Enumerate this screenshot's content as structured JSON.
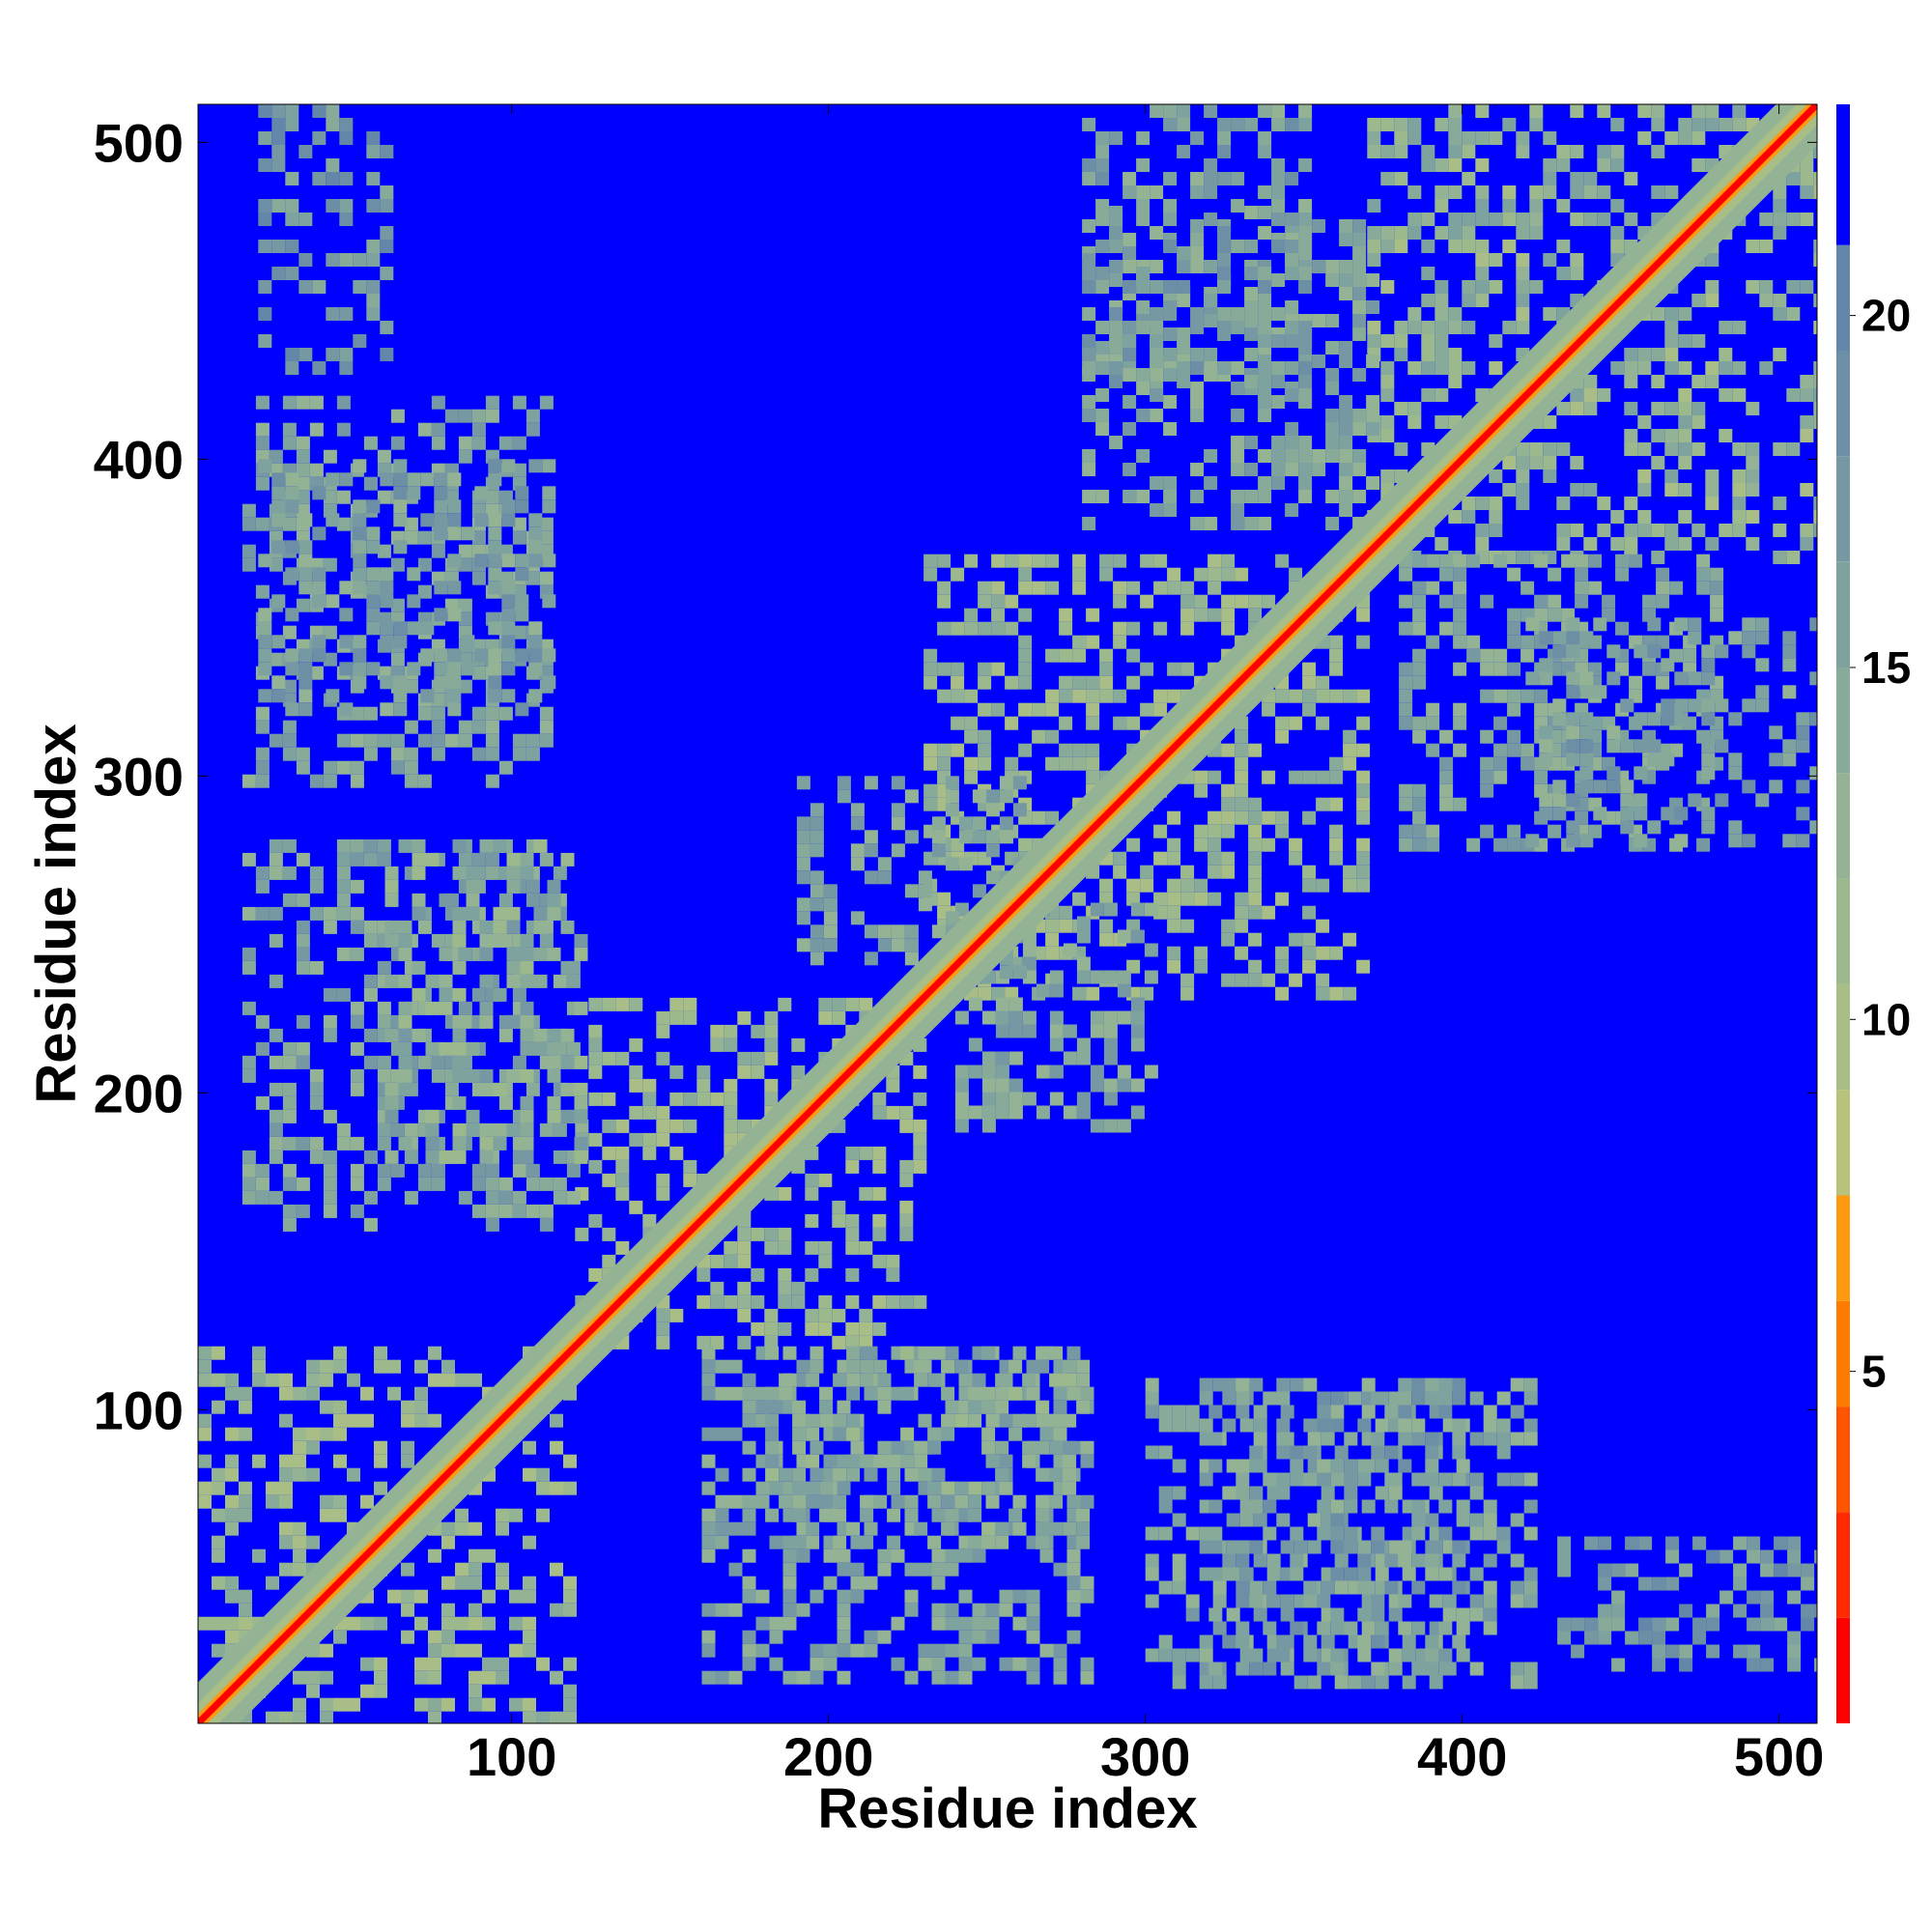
{
  "chart_data": {
    "type": "heatmap",
    "title": "",
    "xlabel": "Residue index",
    "ylabel": "Residue index",
    "xlim": [
      1,
      512
    ],
    "ylim": [
      1,
      512
    ],
    "xticks": [
      100,
      200,
      300,
      400,
      500
    ],
    "yticks": [
      100,
      200,
      300,
      400,
      500
    ],
    "xtick_labels": [
      "100",
      "200",
      "300",
      "400",
      "500"
    ],
    "ytick_labels": [
      "100",
      "200",
      "300",
      "400",
      "500"
    ],
    "colorbar": {
      "range": [
        0,
        23
      ],
      "ticks": [
        5,
        10,
        15,
        20
      ],
      "tick_labels": [
        "5",
        "10",
        "15",
        "20"
      ],
      "levels": [
        {
          "from": 0,
          "to": 1.5,
          "color": "#ff0000"
        },
        {
          "from": 1.5,
          "to": 3,
          "color": "#ff2a00"
        },
        {
          "from": 3,
          "to": 4.5,
          "color": "#ff5500"
        },
        {
          "from": 4.5,
          "to": 6,
          "color": "#ff7b00"
        },
        {
          "from": 6,
          "to": 7.5,
          "color": "#ff9a10"
        },
        {
          "from": 7.5,
          "to": 9,
          "color": "#b9c27a"
        },
        {
          "from": 9,
          "to": 10.5,
          "color": "#a8be86"
        },
        {
          "from": 10.5,
          "to": 12,
          "color": "#9cb98e"
        },
        {
          "from": 12,
          "to": 13.5,
          "color": "#93b394"
        },
        {
          "from": 13.5,
          "to": 15,
          "color": "#88aa99"
        },
        {
          "from": 15,
          "to": 16.5,
          "color": "#7ea29e"
        },
        {
          "from": 16.5,
          "to": 18,
          "color": "#7598a2"
        },
        {
          "from": 18,
          "to": 19.5,
          "color": "#6c8fa6"
        },
        {
          "from": 19.5,
          "to": 21,
          "color": "#6487a9"
        },
        {
          "from": 21,
          "to": 23,
          "color": "#0000ff"
        }
      ]
    },
    "contact_blocks": [
      {
        "x": [
          1,
          120
        ],
        "y": [
          1,
          120
        ],
        "value": 12
      },
      {
        "x": [
          120,
          230
        ],
        "y": [
          120,
          230
        ],
        "value": 12
      },
      {
        "x": [
          230,
          370
        ],
        "y": [
          230,
          370
        ],
        "value": 12
      },
      {
        "x": [
          370,
          512
        ],
        "y": [
          370,
          512
        ],
        "value": 13
      },
      {
        "x": [
          15,
          110
        ],
        "y": [
          300,
          420
        ],
        "value": 15
      },
      {
        "x": [
          300,
          420
        ],
        "y": [
          15,
          110
        ],
        "value": 15
      },
      {
        "x": [
          15,
          120
        ],
        "y": [
          160,
          280
        ],
        "value": 15
      },
      {
        "x": [
          160,
          280
        ],
        "y": [
          15,
          120
        ],
        "value": 15
      },
      {
        "x": [
          180,
          280
        ],
        "y": [
          60,
          120
        ],
        "value": 14
      },
      {
        "x": [
          60,
          120
        ],
        "y": [
          180,
          280
        ],
        "value": 14
      },
      {
        "x": [
          280,
          370
        ],
        "y": [
          380,
          480
        ],
        "value": 15
      },
      {
        "x": [
          380,
          480
        ],
        "y": [
          280,
          370
        ],
        "value": 15
      },
      {
        "x": [
          20,
          60
        ],
        "y": [
          430,
          512
        ],
        "value": 17
      },
      {
        "x": [
          430,
          512
        ],
        "y": [
          20,
          60
        ],
        "value": 17
      },
      {
        "x": [
          320,
          400
        ],
        "y": [
          20,
          110
        ],
        "value": 16
      },
      {
        "x": [
          20,
          110
        ],
        "y": [
          320,
          400
        ],
        "value": 16
      },
      {
        "x": [
          240,
          300
        ],
        "y": [
          190,
          260
        ],
        "value": 15
      },
      {
        "x": [
          190,
          260
        ],
        "y": [
          240,
          300
        ],
        "value": 15
      },
      {
        "x": [
          420,
          512
        ],
        "y": [
          280,
          350
        ],
        "value": 16
      },
      {
        "x": [
          280,
          350
        ],
        "y": [
          420,
          512
        ],
        "value": 16
      }
    ]
  }
}
